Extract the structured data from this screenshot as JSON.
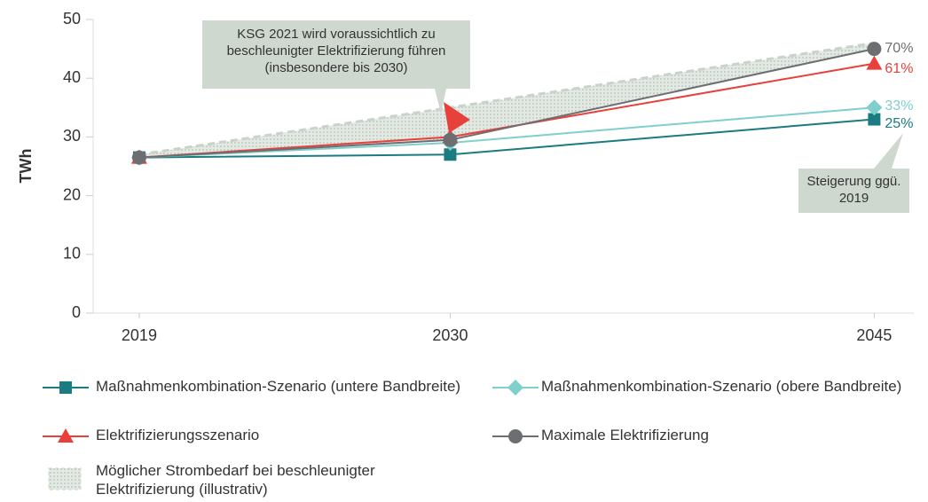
{
  "chart_data": {
    "type": "line",
    "y_label": "TWh",
    "x": [
      2019,
      2030,
      2045
    ],
    "xlim": [
      2017.37,
      2046.4
    ],
    "xticks": [
      2019,
      2030,
      2045
    ],
    "ylim": [
      0,
      50
    ],
    "yticks": [
      0,
      10,
      20,
      30,
      40,
      50
    ],
    "grid": false,
    "band": {
      "name": "Möglicher Strombedarf bei beschleunigter Elektrifizierung (illustrativ)",
      "color": "#c9d3c9",
      "values": [
        27,
        35,
        46
      ]
    },
    "series": [
      {
        "name": "Maßnahmenkombination-Szenario (untere Bandbreite)",
        "color": "#1a7b80",
        "marker": "square",
        "values": [
          26.5,
          27,
          33
        ],
        "end_label": "25%"
      },
      {
        "name": "Maßnahmenkombination-Szenario (obere Bandbreite)",
        "color": "#7fcfcc",
        "marker": "diamond",
        "values": [
          26.5,
          29,
          35
        ],
        "end_label": "33%"
      },
      {
        "name": "Elektrifizierungsszenario",
        "color": "#e8413c",
        "marker": "triangle",
        "values": [
          26.5,
          30,
          42.5
        ],
        "end_label": "61%"
      },
      {
        "name": "Maximale Elektrifizierung",
        "color": "#6d6e71",
        "marker": "circle",
        "values": [
          26.5,
          29.5,
          45
        ],
        "end_label": "70%"
      }
    ],
    "annotations": [
      "KSG 2021 wird voraussichtlich zu beschleunigter Elektrifizierung führen (insbesondere bis 2030)",
      "Steigerung ggü. 2019"
    ]
  }
}
